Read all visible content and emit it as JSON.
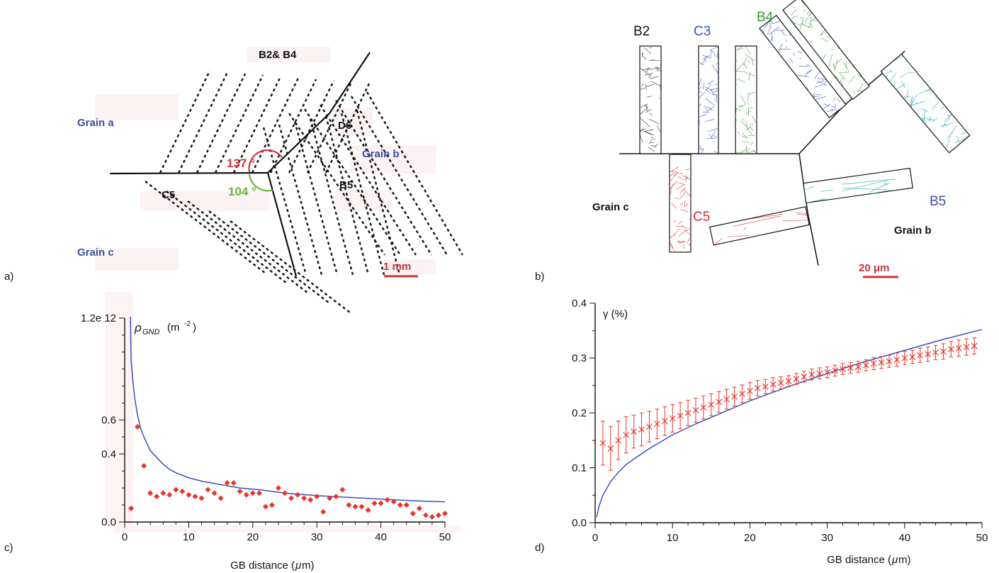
{
  "panels": {
    "a": {
      "letter": "a)",
      "labels": {
        "b2b4": "B2& B4",
        "d6": "D6",
        "b5": "B5",
        "c5": "C5",
        "grain_a": "Grain a",
        "grain_b": "Grain b",
        "grain_c": "Grain c",
        "angle1": "137 °",
        "angle2": "104 °",
        "scale": "1 mm"
      },
      "colors": {
        "grain_text": "#3a4fa0",
        "angle1": "#d0343c",
        "angle2": "#6cb33f",
        "scale": "#c9313a"
      }
    },
    "b": {
      "letter": "b)",
      "labels": {
        "b2": "B2",
        "c3": "C3",
        "b4": "B4",
        "c5": "C5",
        "b5": "B5",
        "grain_c": "Grain c",
        "grain_b": "Grain b",
        "scale": "20 μm"
      },
      "colors": {
        "b2": "#111111",
        "c3": "#3b4fb8",
        "b4": "#3c9a3c",
        "c5": "#d22c36",
        "b5": "#3a55a0",
        "teal": "#1aa6b0"
      }
    },
    "c": {
      "letter": "c)"
    },
    "d": {
      "letter": "d)"
    }
  },
  "chart_data": [
    {
      "panel": "c",
      "type": "scatter",
      "ylabel_symbol": "ρ",
      "ylabel_sub": "GND",
      "ylabel_unit": "(m",
      "ylabel_exp": "-2",
      "ylabel_close": ")",
      "xlabel": "GB distance (",
      "xlabel_unit": "μ",
      "xlabel_tail": "m)",
      "xlim": [
        0,
        50
      ],
      "ylim": [
        0,
        1.2
      ],
      "xticks": [
        0,
        10,
        20,
        30,
        40,
        50
      ],
      "yticks": [
        0.0,
        0.4,
        0.6,
        1.2
      ],
      "ytick_labels": [
        "0.0",
        "0.4",
        "0.6",
        "1.2e 12"
      ],
      "colors": {
        "points": "#e8352c",
        "fit": "#3b4fb8"
      },
      "points": {
        "x": [
          1,
          2,
          3,
          4,
          5,
          6,
          7,
          8,
          9,
          10,
          11,
          12,
          13,
          14,
          15,
          16,
          17,
          18,
          19,
          20,
          21,
          22,
          23,
          24,
          25,
          26,
          27,
          28,
          29,
          30,
          31,
          32,
          33,
          34,
          35,
          36,
          37,
          38,
          39,
          40,
          41,
          42,
          43,
          44,
          45,
          46,
          47,
          48,
          49,
          50
        ],
        "y": [
          0.08,
          0.56,
          0.33,
          0.17,
          0.15,
          0.17,
          0.16,
          0.19,
          0.18,
          0.16,
          0.15,
          0.14,
          0.19,
          0.17,
          0.14,
          0.23,
          0.23,
          0.18,
          0.16,
          0.17,
          0.17,
          0.09,
          0.1,
          0.2,
          0.17,
          0.14,
          0.16,
          0.14,
          0.13,
          0.15,
          0.06,
          0.14,
          0.15,
          0.19,
          0.1,
          0.09,
          0.09,
          0.07,
          0.11,
          0.11,
          0.13,
          0.12,
          0.1,
          0.1,
          0.05,
          0.08,
          0.04,
          0.03,
          0.04,
          0.05
        ]
      },
      "fit": {
        "x": [
          0.9,
          1.0,
          1.3,
          1.6,
          2,
          2.5,
          3,
          3.5,
          4,
          5,
          6,
          7,
          8,
          10,
          12,
          15,
          18,
          21,
          25,
          30,
          35,
          40,
          45,
          50
        ],
        "y": [
          1.22,
          0.95,
          0.82,
          0.72,
          0.63,
          0.55,
          0.5,
          0.46,
          0.42,
          0.38,
          0.34,
          0.31,
          0.29,
          0.26,
          0.24,
          0.22,
          0.2,
          0.19,
          0.17,
          0.155,
          0.145,
          0.135,
          0.125,
          0.118
        ]
      }
    },
    {
      "panel": "d",
      "type": "scatter",
      "ylabel": "γ (%)",
      "xlabel": "GB distance (",
      "xlabel_unit": "μ",
      "xlabel_tail": "m)",
      "xlim": [
        0,
        50
      ],
      "ylim": [
        0,
        0.4
      ],
      "xticks": [
        0,
        10,
        20,
        30,
        40,
        50
      ],
      "yticks": [
        0.0,
        0.1,
        0.2,
        0.3,
        0.4
      ],
      "ytick_labels": [
        "0.0",
        "0.1",
        "0.2",
        "0.3",
        "0.4"
      ],
      "colors": {
        "points": "#e8352c",
        "fit": "#3b4fb8"
      },
      "points": {
        "x": [
          1,
          2,
          3,
          4,
          5,
          6,
          7,
          8,
          9,
          10,
          11,
          12,
          13,
          14,
          15,
          16,
          17,
          18,
          19,
          20,
          21,
          22,
          23,
          24,
          25,
          26,
          27,
          28,
          29,
          30,
          31,
          32,
          33,
          34,
          35,
          36,
          37,
          38,
          39,
          40,
          41,
          42,
          43,
          44,
          45,
          46,
          47,
          48,
          49
        ],
        "y": [
          0.145,
          0.135,
          0.15,
          0.16,
          0.166,
          0.17,
          0.175,
          0.18,
          0.185,
          0.19,
          0.195,
          0.2,
          0.205,
          0.21,
          0.215,
          0.22,
          0.225,
          0.23,
          0.235,
          0.24,
          0.245,
          0.248,
          0.252,
          0.255,
          0.258,
          0.262,
          0.266,
          0.27,
          0.272,
          0.274,
          0.277,
          0.28,
          0.282,
          0.284,
          0.287,
          0.29,
          0.292,
          0.294,
          0.297,
          0.3,
          0.302,
          0.305,
          0.307,
          0.31,
          0.312,
          0.316,
          0.318,
          0.32,
          0.322
        ],
        "err": [
          0.04,
          0.04,
          0.035,
          0.033,
          0.03,
          0.03,
          0.028,
          0.027,
          0.026,
          0.025,
          0.024,
          0.023,
          0.022,
          0.021,
          0.02,
          0.019,
          0.018,
          0.017,
          0.016,
          0.015,
          0.014,
          0.013,
          0.012,
          0.011,
          0.01,
          0.01,
          0.01,
          0.01,
          0.01,
          0.01,
          0.01,
          0.01,
          0.01,
          0.01,
          0.01,
          0.011,
          0.011,
          0.011,
          0.012,
          0.012,
          0.012,
          0.013,
          0.013,
          0.013,
          0.014,
          0.014,
          0.015,
          0.015,
          0.015
        ]
      },
      "fit": {
        "x": [
          0.2,
          0.5,
          1,
          2,
          3,
          4,
          5,
          7,
          10,
          13,
          16,
          20,
          25,
          30,
          35,
          40,
          45,
          50
        ],
        "y": [
          0.01,
          0.03,
          0.05,
          0.075,
          0.092,
          0.106,
          0.116,
          0.135,
          0.16,
          0.18,
          0.198,
          0.222,
          0.248,
          0.272,
          0.294,
          0.314,
          0.334,
          0.352
        ]
      }
    }
  ]
}
